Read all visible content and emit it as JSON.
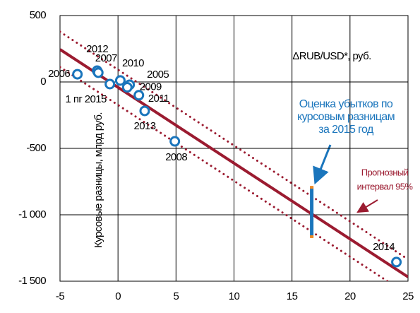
{
  "chart_data": {
    "type": "scatter",
    "x_label": "ΔRUB/USD*, руб.",
    "y_label": "Курсовые разницы, млрд руб.",
    "xlim": [
      -5,
      25
    ],
    "xticks": [
      -5,
      0,
      5,
      10,
      15,
      20,
      25
    ],
    "ylim": [
      -1500,
      500
    ],
    "yticks": [
      500,
      0,
      -500,
      {
        "value": -1000,
        "label": "-1 000"
      },
      {
        "value": -1500,
        "label": "-1 500"
      }
    ],
    "grid": true,
    "points": {
      "color": "#1a75bc",
      "labels": [
        "2012",
        "2007",
        "2006",
        "1 пг 2015",
        "2010",
        "2005",
        "2009",
        "2011",
        "2013",
        "2008",
        "2014"
      ],
      "x": [
        -1.8,
        -1.7,
        -3.5,
        -0.7,
        0.2,
        1.0,
        0.8,
        1.8,
        2.3,
        4.9,
        24.0
      ],
      "values": [
        85,
        70,
        58,
        -16,
        11,
        -21,
        -40,
        -100,
        -218,
        -447,
        -1356
      ]
    },
    "fit": {
      "color": "#9b1b30",
      "x": [
        -5,
        25
      ],
      "values": [
        245,
        -1468
      ]
    },
    "interval": {
      "name": [
        "Прогнозный",
        "интервал 95%"
      ],
      "color": "#9b1b30",
      "upper": {
        "x": [
          -5,
          25
        ],
        "values": [
          378,
          -1335
        ]
      },
      "lower": {
        "x": [
          -5,
          25
        ],
        "values": [
          112,
          -1601
        ]
      }
    },
    "estimate": {
      "text": [
        "Оценка убытков по",
        "курсовым разницам",
        "за 2015 год"
      ],
      "color": "#1a75bc",
      "cap_color": "#f08a24",
      "x": 16.7,
      "low": -1165,
      "high": -793
    }
  }
}
